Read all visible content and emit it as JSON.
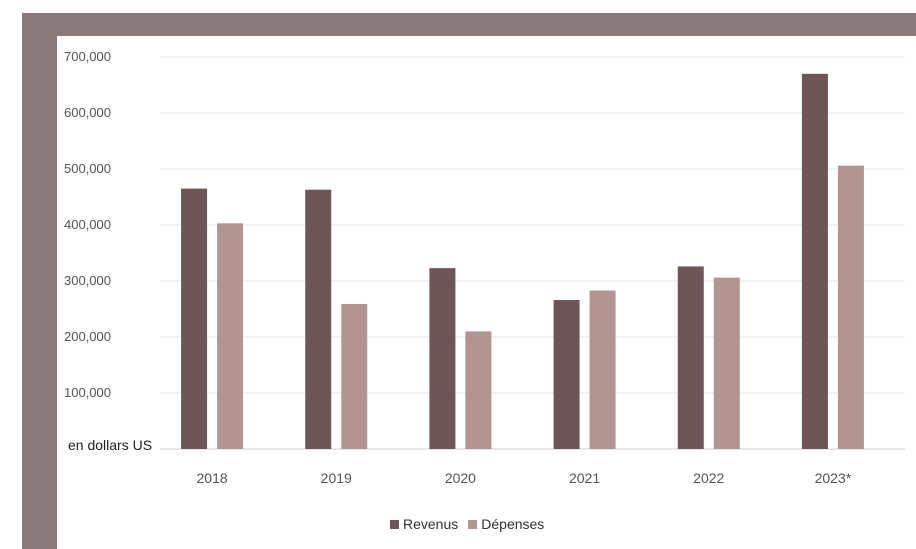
{
  "chart_data": {
    "type": "bar",
    "categories": [
      "2018",
      "2019",
      "2020",
      "2021",
      "2022",
      "2023*"
    ],
    "series": [
      {
        "name": "Revenus",
        "values": [
          465000,
          463000,
          323000,
          266000,
          326000,
          670000
        ],
        "color": "#6e5558"
      },
      {
        "name": "Dépenses",
        "values": [
          403000,
          259000,
          210000,
          283000,
          306000,
          506000
        ],
        "color": "#b29590"
      }
    ],
    "ylim": [
      0,
      700000
    ],
    "yticks": [
      "100,000",
      "200,000",
      "300,000",
      "400,000",
      "500,000",
      "600,000",
      "700,000"
    ],
    "unit_label": "en dollars US",
    "grid": true,
    "legend_position": "bottom"
  },
  "colors": {
    "frame": "#8a7a7c",
    "gridline": "#e4e4e4"
  }
}
